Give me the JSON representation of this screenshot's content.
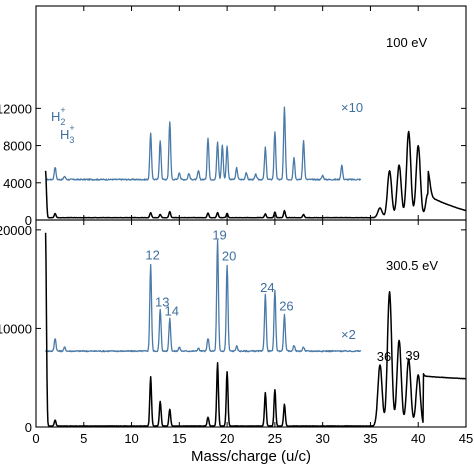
{
  "colors": {
    "blue_trace": "#4a7aa8",
    "black_trace": "#000000",
    "label_blue": "#3f6f9f"
  },
  "chart_data": [
    {
      "type": "line",
      "panel": "top",
      "energy_label": "100 eV",
      "ylim": [
        0,
        23000
      ],
      "ytick_labels": [
        "0",
        "4000",
        "8000",
        "12000"
      ],
      "ytick_values": [
        0,
        4000,
        8000,
        12000
      ],
      "ion_label": {
        "ions": [
          {
            "base": "H",
            "sub": "2",
            "sup": "+"
          },
          {
            "base": "H",
            "sub": "3",
            "sup": "+"
          }
        ]
      },
      "multiplier_label": "×10",
      "series": [
        {
          "color": "blue",
          "multiplier": 10,
          "baseline": 4350,
          "x_range": [
            1,
            34
          ],
          "peaks": [
            {
              "x": 2,
              "y": 5700
            },
            {
              "x": 3,
              "y": 4700
            },
            {
              "x": 12,
              "y": 9300
            },
            {
              "x": 13,
              "y": 8500
            },
            {
              "x": 14,
              "y": 10600
            },
            {
              "x": 15,
              "y": 5100
            },
            {
              "x": 16,
              "y": 5000
            },
            {
              "x": 17,
              "y": 5300
            },
            {
              "x": 18,
              "y": 8800
            },
            {
              "x": 19,
              "y": 8400
            },
            {
              "x": 19.5,
              "y": 8100
            },
            {
              "x": 20,
              "y": 7900
            },
            {
              "x": 21,
              "y": 5600
            },
            {
              "x": 22,
              "y": 5100
            },
            {
              "x": 23,
              "y": 4900
            },
            {
              "x": 24,
              "y": 7800
            },
            {
              "x": 25,
              "y": 9500
            },
            {
              "x": 26,
              "y": 12100
            },
            {
              "x": 27,
              "y": 6700
            },
            {
              "x": 28,
              "y": 8600
            },
            {
              "x": 30,
              "y": 4800
            },
            {
              "x": 32,
              "y": 5900
            }
          ]
        },
        {
          "color": "black",
          "multiplier": 1,
          "baseline": 250,
          "x_range": [
            1,
            45
          ],
          "peaks": [
            {
              "x": 1,
              "y": 5300
            },
            {
              "x": 2,
              "y": 700
            },
            {
              "x": 12,
              "y": 800
            },
            {
              "x": 13,
              "y": 600
            },
            {
              "x": 14,
              "y": 900
            },
            {
              "x": 18,
              "y": 750
            },
            {
              "x": 19,
              "y": 800
            },
            {
              "x": 20,
              "y": 700
            },
            {
              "x": 24,
              "y": 650
            },
            {
              "x": 25,
              "y": 850
            },
            {
              "x": 26,
              "y": 1000
            },
            {
              "x": 28,
              "y": 600
            },
            {
              "x": 36,
              "y": 1300
            },
            {
              "x": 37,
              "y": 5300
            },
            {
              "x": 38,
              "y": 5900
            },
            {
              "x": 39,
              "y": 9500
            },
            {
              "x": 40,
              "y": 8000
            },
            {
              "x": 41,
              "y": 2800
            }
          ],
          "tail": {
            "x_start": 41,
            "y_start": 2800,
            "x_end": 45,
            "y_end": 1000
          }
        }
      ]
    },
    {
      "type": "line",
      "panel": "bottom",
      "energy_label": "300.5 eV",
      "ylim": [
        0,
        21000
      ],
      "ytick_labels": [
        "0",
        "10000",
        "20000"
      ],
      "ytick_values": [
        0,
        10000,
        20000
      ],
      "multiplier_label": "×2",
      "xlim": [
        0,
        45
      ],
      "xtick_labels": [
        "0",
        "5",
        "10",
        "15",
        "20",
        "25",
        "30",
        "35",
        "40",
        "45"
      ],
      "xtick_values": [
        0,
        5,
        10,
        15,
        20,
        25,
        30,
        35,
        40,
        45
      ],
      "xlabel": "Mass/charge (u/c)",
      "peak_labels_blue": [
        {
          "text": "12",
          "x": 12,
          "y": 17000
        },
        {
          "text": "13",
          "x": 13,
          "y": 12200
        },
        {
          "text": "14",
          "x": 14,
          "y": 11300
        },
        {
          "text": "19",
          "x": 19,
          "y": 19000
        },
        {
          "text": "20",
          "x": 20,
          "y": 16900
        },
        {
          "text": "24",
          "x": 24,
          "y": 13700
        },
        {
          "text": "26",
          "x": 26,
          "y": 11800
        }
      ],
      "peak_labels_black": [
        {
          "text": "36",
          "x": 36,
          "y": 6700
        },
        {
          "text": "39",
          "x": 39,
          "y": 6800
        }
      ],
      "series": [
        {
          "color": "blue",
          "multiplier": 2,
          "baseline": 7700,
          "x_range": [
            1,
            34
          ],
          "peaks": [
            {
              "x": 2,
              "y": 9000
            },
            {
              "x": 3,
              "y": 8100
            },
            {
              "x": 12,
              "y": 16500
            },
            {
              "x": 13,
              "y": 11900
            },
            {
              "x": 14,
              "y": 11000
            },
            {
              "x": 15,
              "y": 8100
            },
            {
              "x": 17,
              "y": 8000
            },
            {
              "x": 18,
              "y": 9000
            },
            {
              "x": 19,
              "y": 18900
            },
            {
              "x": 20,
              "y": 16400
            },
            {
              "x": 21,
              "y": 8200
            },
            {
              "x": 24,
              "y": 13500
            },
            {
              "x": 25,
              "y": 13800
            },
            {
              "x": 26,
              "y": 11400
            },
            {
              "x": 27,
              "y": 8300
            },
            {
              "x": 28,
              "y": 8100
            }
          ]
        },
        {
          "color": "black",
          "multiplier": 1,
          "baseline": 100,
          "x_range": [
            1,
            45
          ],
          "peaks": [
            {
              "x": 1,
              "y": 19700
            },
            {
              "x": 2,
              "y": 700
            },
            {
              "x": 12,
              "y": 5100
            },
            {
              "x": 13,
              "y": 2600
            },
            {
              "x": 14,
              "y": 1800
            },
            {
              "x": 18,
              "y": 1000
            },
            {
              "x": 19,
              "y": 6500
            },
            {
              "x": 20,
              "y": 5600
            },
            {
              "x": 24,
              "y": 3500
            },
            {
              "x": 25,
              "y": 3800
            },
            {
              "x": 26,
              "y": 2300
            },
            {
              "x": 36,
              "y": 6300
            },
            {
              "x": 37,
              "y": 13700
            },
            {
              "x": 38,
              "y": 8800
            },
            {
              "x": 39,
              "y": 6900
            },
            {
              "x": 40,
              "y": 5300
            }
          ],
          "tail": {
            "x_start": 40.5,
            "y_start": 5200,
            "x_end": 45,
            "y_end": 4900
          }
        }
      ]
    }
  ]
}
